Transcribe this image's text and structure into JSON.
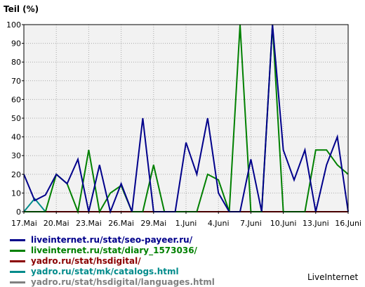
{
  "chart_data": {
    "type": "line",
    "ylabel": "Teil (%)",
    "ylim": [
      0,
      100
    ],
    "yticks": [
      "0",
      "10",
      "20",
      "30",
      "40",
      "50",
      "60",
      "70",
      "80",
      "90",
      "100"
    ],
    "x_start": "17.Mai",
    "xticks": [
      {
        "label": "17.Mai",
        "day": 0
      },
      {
        "label": "20.Mai",
        "day": 3
      },
      {
        "label": "23.Mai",
        "day": 6
      },
      {
        "label": "26.Mai",
        "day": 9
      },
      {
        "label": "29.Mai",
        "day": 12
      },
      {
        "label": "1.Juni",
        "day": 15
      },
      {
        "label": "4.Juni",
        "day": 18
      },
      {
        "label": "7.Juni",
        "day": 21
      },
      {
        "label": "10.Juni",
        "day": 24
      },
      {
        "label": "13.Juni",
        "day": 27
      },
      {
        "label": "16.Juni",
        "day": 30
      }
    ],
    "grid": true,
    "series": [
      {
        "name": "yadro.ru/stat/hsdigital/languages.html",
        "color": "#808080",
        "values": [
          0,
          0,
          0,
          0,
          0,
          0,
          0,
          0,
          0,
          0,
          0,
          0,
          0,
          0,
          0,
          0,
          0,
          0,
          0,
          0,
          0,
          0,
          0,
          0,
          0,
          0,
          0,
          0,
          0,
          0,
          0
        ]
      },
      {
        "name": "yadro.ru/stat/mk/catalogs.html",
        "color": "#008b8b",
        "values": [
          0,
          7,
          0,
          0,
          0,
          0,
          0,
          0,
          0,
          0,
          0,
          0,
          0,
          0,
          0,
          0,
          0,
          0,
          0,
          0,
          0,
          0,
          0,
          0,
          0,
          0,
          0,
          0,
          0,
          0,
          0
        ]
      },
      {
        "name": "yadro.ru/stat/hsdigital/",
        "color": "#8b0000",
        "values": [
          0,
          0,
          0,
          0,
          0,
          0,
          0,
          0,
          0,
          0,
          0,
          0,
          0,
          0,
          0,
          0,
          0,
          0,
          0,
          0,
          0,
          0,
          0,
          0,
          0,
          0,
          0,
          0,
          0,
          0,
          0
        ]
      },
      {
        "name": "liveinternet.ru/stat/diary_1573036/",
        "color": "#008000",
        "values": [
          0,
          0,
          0,
          20,
          15,
          0,
          33,
          0,
          10,
          14,
          0,
          0,
          25,
          0,
          0,
          0,
          0,
          20,
          17,
          0,
          100,
          0,
          0,
          100,
          0,
          0,
          0,
          33,
          33,
          25,
          20
        ]
      },
      {
        "name": "liveinternet.ru/stat/seo-payeer.ru/",
        "color": "#00008b",
        "values": [
          20,
          6,
          9,
          20,
          15,
          28,
          0,
          25,
          0,
          15,
          0,
          50,
          0,
          0,
          0,
          37,
          20,
          50,
          10,
          0,
          0,
          28,
          0,
          100,
          33,
          17,
          33,
          0,
          25,
          40,
          0
        ]
      }
    ]
  },
  "legend": [
    {
      "label": "liveinternet.ru/stat/seo-payeer.ru/",
      "color": "#00008b"
    },
    {
      "label": "liveinternet.ru/stat/diary_1573036/",
      "color": "#008000"
    },
    {
      "label": "yadro.ru/stat/hsdigital/",
      "color": "#8b0000"
    },
    {
      "label": "yadro.ru/stat/mk/catalogs.html",
      "color": "#008b8b"
    },
    {
      "label": "yadro.ru/stat/hsdigital/languages.html",
      "color": "#808080"
    }
  ],
  "brand": "LiveInternet",
  "colors": {
    "plot_bg": "#f2f2f2",
    "grid": "#aaaaaa",
    "axis": "#000000"
  }
}
